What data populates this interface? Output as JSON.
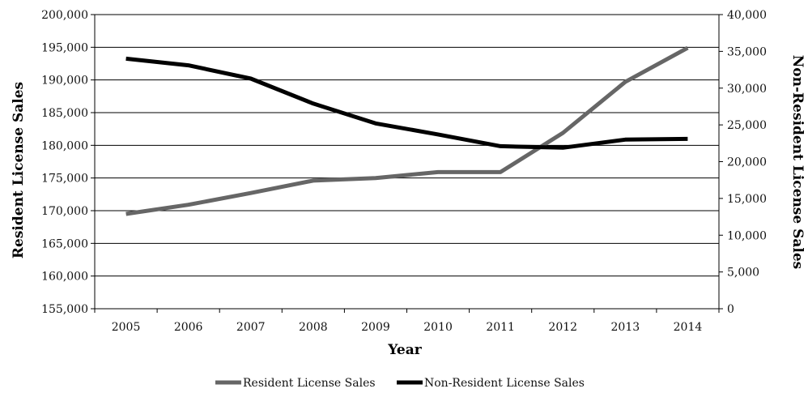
{
  "chart_data": {
    "type": "line",
    "title": "",
    "xlabel": "Year",
    "ylabel_left": "Resident License Sales",
    "ylabel_right": "Non-Resident License Sales",
    "categories": [
      "2005",
      "2006",
      "2007",
      "2008",
      "2009",
      "2010",
      "2011",
      "2012",
      "2013",
      "2014"
    ],
    "y_left": {
      "range": [
        155000,
        200000
      ],
      "ticks": [
        155000,
        160000,
        165000,
        170000,
        175000,
        180000,
        185000,
        190000,
        195000,
        200000
      ],
      "tick_labels": [
        "155,000",
        "160,000",
        "165,000",
        "170,000",
        "175,000",
        "180,000",
        "185,000",
        "190,000",
        "195,000",
        "200,000"
      ]
    },
    "y_right": {
      "range": [
        0,
        40000
      ],
      "ticks": [
        0,
        5000,
        10000,
        15000,
        20000,
        25000,
        30000,
        35000,
        40000
      ],
      "tick_labels": [
        "0",
        "5,000",
        "10,000",
        "15,000",
        "20,000",
        "25,000",
        "30,000",
        "35,000",
        "40,000"
      ]
    },
    "grid": "horizontal",
    "legend_position": "bottom",
    "series": [
      {
        "name": "Resident License Sales",
        "axis": "left",
        "color": "#666666",
        "values": [
          169500,
          170900,
          172700,
          174600,
          175000,
          175900,
          175900,
          181900,
          189700,
          194900
        ]
      },
      {
        "name": "Non-Resident License Sales",
        "axis": "right",
        "color": "#000000",
        "values": [
          34000,
          33100,
          31300,
          27900,
          25200,
          23700,
          22100,
          21900,
          23000,
          23100
        ]
      }
    ]
  }
}
